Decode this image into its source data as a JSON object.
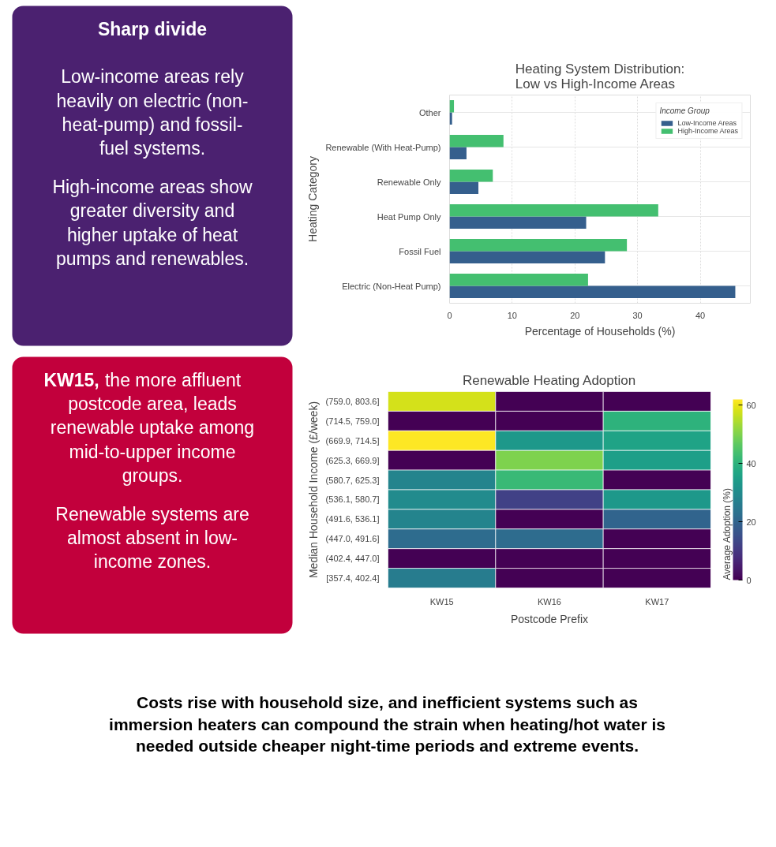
{
  "chart_data": [
    {
      "type": "other",
      "color": "#4b2170",
      "title": "Sharp divide",
      "annotations": [
        "Low-income areas rely heavily on electric (non-heat-pump) and fossil-fuel systems.",
        "High-income areas show greater diversity and higher uptake of heat pumps and renewables."
      ]
    },
    {
      "type": "bar",
      "orientation": "horizontal",
      "title": "Heating System Distribution:\nLow vs High-Income Areas",
      "xlabel": "Percentage of Households (%)",
      "ylabel": "Heating Category",
      "legend_title": "Income Group",
      "legend": "top right",
      "grid": true,
      "categories": [
        "Other",
        "Renewable (With Heat-Pump)",
        "Renewable Only",
        "Heat Pump Only",
        "Fossil Fuel",
        "Electric (Non-Heat Pump)"
      ],
      "xlim": [
        0,
        48
      ],
      "xticks": [
        0,
        10,
        20,
        30,
        40
      ],
      "series": [
        {
          "name": "Low-Income Areas",
          "color": "#355f8d",
          "values": [
            0.4,
            2.7,
            4.6,
            21.8,
            24.8,
            45.6
          ]
        },
        {
          "name": "High-Income Areas",
          "color": "#44bf70",
          "values": [
            0.7,
            8.6,
            6.9,
            33.3,
            28.3,
            22.1
          ]
        }
      ]
    },
    {
      "type": "other",
      "color": "#c2003c",
      "annotations": [
        "KW15, the more affluent postcode area, leads renewable uptake among mid-to-upper income groups.",
        "Renewable systems are almost absent in low-income zones."
      ]
    },
    {
      "type": "heatmap",
      "title": "Renewable Heating Adoption",
      "xlabel": "Postcode Prefix",
      "ylabel": "Median Household Income (£/week)",
      "clabel": "Average Adoption (%)",
      "categories": [
        "KW15",
        "KW16",
        "KW17"
      ],
      "y_categories": [
        "(759.0, 803.6]",
        "(714.5, 759.0]",
        "(669.9, 714.5]",
        "(625.3, 669.9]",
        "(580.7, 625.3]",
        "(536.1, 580.7]",
        "(491.6, 536.1]",
        "(447.0, 491.6]",
        "(402.4, 447.0]",
        "[357.4, 402.4]"
      ],
      "cells": [
        [
          58,
          0,
          0
        ],
        [
          0,
          0,
          40
        ],
        [
          62,
          33,
          36
        ],
        [
          0,
          50,
          35
        ],
        [
          28,
          42,
          0
        ],
        [
          30,
          12,
          33
        ],
        [
          28,
          0,
          20
        ],
        [
          22,
          22,
          0
        ],
        [
          0,
          0,
          0
        ],
        [
          26,
          0,
          0
        ]
      ],
      "clim": [
        0,
        62
      ],
      "cticks": [
        0,
        20,
        40,
        60
      ]
    },
    {
      "type": "other",
      "annotations": [
        "Costs rise with household size, and inefficient systems such as immersion heaters can compound the strain when heating/hot water is needed outside cheaper night-time periods and extreme events."
      ]
    }
  ]
}
